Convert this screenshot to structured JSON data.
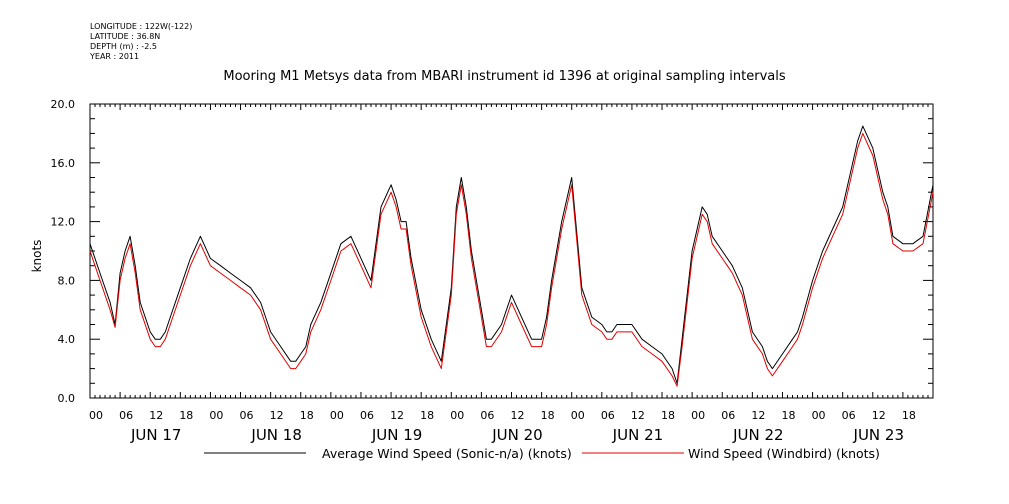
{
  "header": {
    "longitude": "LONGITUDE : 122W(-122)",
    "latitude": "LATITUDE : 36.8N",
    "depth": "DEPTH (m) : -2.5",
    "year": "YEAR : 2011"
  },
  "chart_data": {
    "type": "line",
    "title": "Mooring M1 Metsys data from MBARI instrument id 1396 at original sampling intervals",
    "ylabel": "knots",
    "xlabel": "",
    "ylim": [
      0,
      20
    ],
    "xlim_hours": [
      0,
      168
    ],
    "y_ticks": [
      "0.0",
      "4.0",
      "8.0",
      "12.0",
      "16.0",
      "20.0"
    ],
    "hour_tick_labels": [
      "00",
      "06",
      "12",
      "18"
    ],
    "day_labels": [
      "JUN 17",
      "JUN 18",
      "JUN 19",
      "JUN 20",
      "JUN 21",
      "JUN 22",
      "JUN 23"
    ],
    "grid": false,
    "legend": "bottom",
    "colors": {
      "avg": "#000000",
      "windbird": "#e00000"
    },
    "series": [
      {
        "name": "Average Wind Speed (Sonic-n/a) (knots)",
        "key": "avg",
        "x_hours": [
          0,
          2,
          4,
          5,
          6,
          7,
          8,
          9,
          10,
          12,
          13,
          14,
          15,
          16,
          18,
          20,
          22,
          24,
          26,
          28,
          30,
          32,
          34,
          36,
          38,
          40,
          41,
          42,
          43,
          44,
          46,
          48,
          50,
          52,
          54,
          56,
          57,
          58,
          60,
          61,
          62,
          63,
          64,
          66,
          68,
          70,
          72,
          73,
          74,
          75,
          76,
          78,
          79,
          80,
          82,
          84,
          86,
          88,
          90,
          91,
          92,
          94,
          96,
          98,
          100,
          102,
          103,
          104,
          105,
          106,
          108,
          110,
          112,
          114,
          116,
          117,
          118,
          120,
          122,
          123,
          124,
          126,
          127,
          128,
          130,
          132,
          134,
          135,
          136,
          138,
          140,
          141,
          142,
          144,
          146,
          148,
          150,
          152,
          153,
          154,
          156,
          158,
          159,
          160,
          162,
          164,
          166,
          168
        ],
        "y": [
          10.5,
          8.5,
          6.5,
          5.0,
          8.5,
          10.0,
          11.0,
          9.0,
          6.5,
          4.5,
          4.0,
          4.0,
          4.5,
          5.5,
          7.5,
          9.5,
          11.0,
          9.5,
          9.0,
          8.5,
          8.0,
          7.5,
          6.5,
          4.5,
          3.5,
          2.5,
          2.5,
          3.0,
          3.5,
          5.0,
          6.5,
          8.5,
          10.5,
          11.0,
          9.5,
          8.0,
          10.5,
          13.0,
          14.5,
          13.5,
          12.0,
          12.0,
          9.5,
          6.0,
          4.0,
          2.5,
          7.5,
          13.0,
          15.0,
          13.0,
          10.0,
          6.0,
          4.0,
          4.0,
          5.0,
          7.0,
          5.5,
          4.0,
          4.0,
          5.5,
          8.0,
          12.0,
          15.0,
          7.5,
          5.5,
          5.0,
          4.5,
          4.5,
          5.0,
          5.0,
          5.0,
          4.0,
          3.5,
          3.0,
          2.0,
          1.0,
          4.0,
          10.0,
          13.0,
          12.5,
          11.0,
          10.0,
          9.5,
          9.0,
          7.5,
          4.5,
          3.5,
          2.5,
          2.0,
          3.0,
          4.0,
          4.5,
          5.5,
          8.0,
          10.0,
          11.5,
          13.0,
          16.0,
          17.5,
          18.5,
          17.0,
          14.0,
          13.0,
          11.0,
          10.5,
          10.5,
          11.0,
          14.5
        ]
      },
      {
        "name": "Wind Speed (Windbird) (knots)",
        "key": "windbird",
        "x_hours": [
          0,
          2,
          4,
          5,
          6,
          7,
          8,
          9,
          10,
          12,
          13,
          14,
          15,
          16,
          18,
          20,
          22,
          24,
          26,
          28,
          30,
          32,
          34,
          36,
          38,
          40,
          41,
          42,
          43,
          44,
          46,
          48,
          50,
          52,
          54,
          56,
          57,
          58,
          60,
          61,
          62,
          63,
          64,
          66,
          68,
          70,
          72,
          73,
          74,
          75,
          76,
          78,
          79,
          80,
          82,
          84,
          86,
          88,
          90,
          91,
          92,
          94,
          96,
          98,
          100,
          102,
          103,
          104,
          105,
          106,
          108,
          110,
          112,
          114,
          116,
          117,
          118,
          120,
          122,
          123,
          124,
          126,
          127,
          128,
          130,
          132,
          134,
          135,
          136,
          138,
          140,
          141,
          142,
          144,
          146,
          148,
          150,
          152,
          153,
          154,
          156,
          158,
          159,
          160,
          162,
          164,
          166,
          168
        ],
        "y": [
          10.0,
          8.0,
          6.0,
          4.8,
          8.0,
          9.5,
          10.5,
          8.5,
          6.0,
          4.0,
          3.5,
          3.5,
          4.0,
          5.0,
          7.0,
          9.0,
          10.5,
          9.0,
          8.5,
          8.0,
          7.5,
          7.0,
          6.0,
          4.0,
          3.0,
          2.0,
          2.0,
          2.5,
          3.0,
          4.5,
          6.0,
          8.0,
          10.0,
          10.5,
          9.0,
          7.5,
          10.0,
          12.5,
          14.0,
          13.0,
          11.5,
          11.5,
          9.0,
          5.5,
          3.5,
          2.0,
          7.0,
          12.5,
          14.5,
          12.5,
          9.5,
          5.5,
          3.5,
          3.5,
          4.5,
          6.5,
          5.0,
          3.5,
          3.5,
          5.0,
          7.5,
          11.5,
          14.5,
          7.0,
          5.0,
          4.5,
          4.0,
          4.0,
          4.5,
          4.5,
          4.5,
          3.5,
          3.0,
          2.5,
          1.5,
          0.8,
          3.5,
          9.5,
          12.5,
          12.0,
          10.5,
          9.5,
          9.0,
          8.5,
          7.0,
          4.0,
          3.0,
          2.0,
          1.5,
          2.5,
          3.5,
          4.0,
          5.0,
          7.5,
          9.5,
          11.0,
          12.5,
          15.5,
          17.0,
          18.0,
          16.5,
          13.5,
          12.5,
          10.5,
          10.0,
          10.0,
          10.5,
          14.0
        ]
      }
    ]
  }
}
